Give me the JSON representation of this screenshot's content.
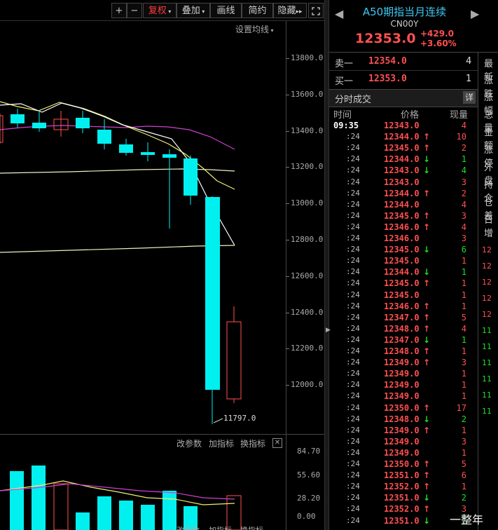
{
  "toolbar": {
    "plus": "+",
    "minus": "−",
    "fuquan": "复权",
    "diejia": "叠加",
    "huaxian": "画线",
    "jianyue": "简约",
    "yincang": "隐藏",
    "setting_ma": "设置均线"
  },
  "price_axis": [
    "13800.0",
    "13600.0",
    "13400.0",
    "13200.0",
    "13000.0",
    "12800.0",
    "12600.0",
    "12400.0",
    "12200.0",
    "12000.0"
  ],
  "low_label": "11797.0",
  "indicator_bar": {
    "gai": "改参数",
    "jia": "加指标",
    "huan": "换指标",
    "close": "✕"
  },
  "vol_axis": [
    "84.70",
    "55.60",
    "28.20",
    "0.00"
  ],
  "vol_bottom": {
    "gai": "改参数",
    "jia": "加指标",
    "huan": "换指标"
  },
  "header": {
    "title": "A50期指当月连续",
    "code": "CN00Y",
    "price": "12353.0",
    "change": "+429.0",
    "change_pct": "+3.60%"
  },
  "orderbook": {
    "sell_label": "卖一",
    "sell_price": "12354.0",
    "sell_vol": "4",
    "buy_label": "买一",
    "buy_price": "12353.0",
    "buy_vol": "1"
  },
  "ticks_title": "分时成交",
  "ticks_detail": "详",
  "ticks_headers": {
    "time": "时间",
    "price": "价格",
    "vol": "现量"
  },
  "ticks": [
    {
      "t": "09:35",
      "p": "12343.0",
      "a": "",
      "v": "4"
    },
    {
      "t": ":24",
      "p": "12344.0",
      "a": "up",
      "v": "10"
    },
    {
      "t": ":24",
      "p": "12345.0",
      "a": "up",
      "v": "2"
    },
    {
      "t": ":24",
      "p": "12344.0",
      "a": "down",
      "v": "1"
    },
    {
      "t": ":24",
      "p": "12343.0",
      "a": "down",
      "v": "4"
    },
    {
      "t": ":24",
      "p": "12343.0",
      "a": "",
      "v": "3"
    },
    {
      "t": ":24",
      "p": "12344.0",
      "a": "up",
      "v": "2"
    },
    {
      "t": ":24",
      "p": "12344.0",
      "a": "",
      "v": "4"
    },
    {
      "t": ":24",
      "p": "12345.0",
      "a": "up",
      "v": "3"
    },
    {
      "t": ":24",
      "p": "12346.0",
      "a": "up",
      "v": "4"
    },
    {
      "t": ":24",
      "p": "12346.0",
      "a": "",
      "v": "3"
    },
    {
      "t": ":24",
      "p": "12345.0",
      "a": "down",
      "v": "6"
    },
    {
      "t": ":24",
      "p": "12345.0",
      "a": "",
      "v": "1"
    },
    {
      "t": ":24",
      "p": "12344.0",
      "a": "down",
      "v": "1"
    },
    {
      "t": ":24",
      "p": "12345.0",
      "a": "up",
      "v": "1"
    },
    {
      "t": ":24",
      "p": "12345.0",
      "a": "",
      "v": "1"
    },
    {
      "t": ":24",
      "p": "12346.0",
      "a": "up",
      "v": "1"
    },
    {
      "t": ":24",
      "p": "12347.0",
      "a": "up",
      "v": "5"
    },
    {
      "t": ":24",
      "p": "12348.0",
      "a": "up",
      "v": "4"
    },
    {
      "t": ":24",
      "p": "12347.0",
      "a": "down",
      "v": "1"
    },
    {
      "t": ":24",
      "p": "12348.0",
      "a": "up",
      "v": "1"
    },
    {
      "t": ":24",
      "p": "12349.0",
      "a": "up",
      "v": "3"
    },
    {
      "t": ":24",
      "p": "12349.0",
      "a": "",
      "v": "1"
    },
    {
      "t": ":24",
      "p": "12349.0",
      "a": "",
      "v": "1"
    },
    {
      "t": ":24",
      "p": "12349.0",
      "a": "",
      "v": "1"
    },
    {
      "t": ":24",
      "p": "12350.0",
      "a": "up",
      "v": "17"
    },
    {
      "t": ":24",
      "p": "12348.0",
      "a": "down",
      "v": "2"
    },
    {
      "t": ":24",
      "p": "12349.0",
      "a": "up",
      "v": "1"
    },
    {
      "t": ":24",
      "p": "12349.0",
      "a": "",
      "v": "3"
    },
    {
      "t": ":24",
      "p": "12349.0",
      "a": "",
      "v": "1"
    },
    {
      "t": ":24",
      "p": "12350.0",
      "a": "up",
      "v": "5"
    },
    {
      "t": ":24",
      "p": "12351.0",
      "a": "up",
      "v": "6"
    },
    {
      "t": ":24",
      "p": "12352.0",
      "a": "up",
      "v": "1"
    },
    {
      "t": ":24",
      "p": "12351.0",
      "a": "down",
      "v": "2"
    },
    {
      "t": ":24",
      "p": "12352.0",
      "a": "up",
      "v": "3"
    },
    {
      "t": ":24",
      "p": "12351.0",
      "a": "down",
      "v": "2"
    }
  ],
  "side_labels": [
    "最新",
    "涨跌",
    "涨幅",
    "总量",
    "金额",
    "涨停",
    "外盘",
    "持仓",
    "仓差",
    "日增"
  ],
  "watermark": "一整年",
  "colors": {
    "up": "#ff5050",
    "down": "#22dd22",
    "cyan": "#00f0f0",
    "ma_white": "#ffffff",
    "ma_yellow": "#f0f070",
    "ma_magenta": "#d040d0"
  }
}
